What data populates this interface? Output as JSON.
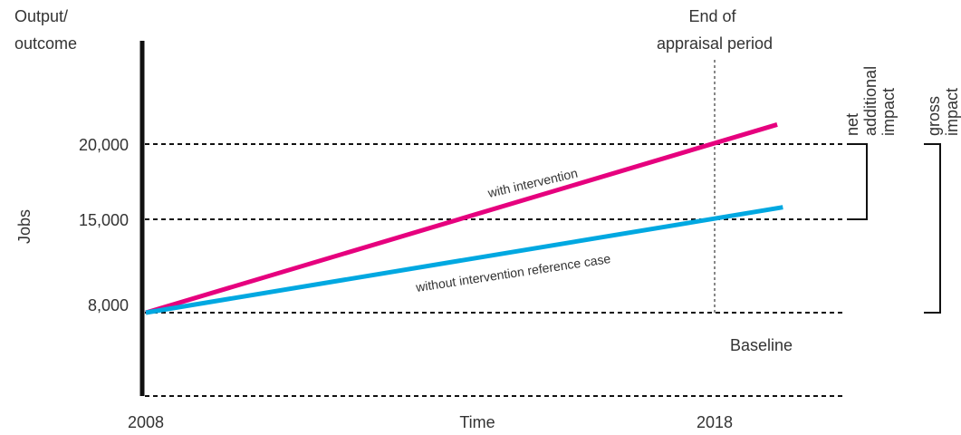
{
  "chart_data": {
    "type": "line",
    "title": "",
    "ylabel": "Jobs",
    "xlabel": "Time",
    "y_axis_title": "Output/ outcome",
    "x_tick_labels": [
      {
        "value": 2008,
        "label": "2008"
      },
      {
        "value": 2018,
        "label": "2018"
      }
    ],
    "y_tick_labels": [
      {
        "value": 20000,
        "label": "20,000"
      },
      {
        "value": 15000,
        "label": "15,000"
      },
      {
        "value": 8000,
        "label": "8,000"
      }
    ],
    "series": [
      {
        "name": "with intervention",
        "color": "#e6007e",
        "points": [
          [
            2008,
            8000
          ],
          [
            2018,
            20000
          ],
          [
            2019.1,
            21300
          ]
        ]
      },
      {
        "name": "without intervention reference case",
        "color": "#00a8e1",
        "points": [
          [
            2008,
            8000
          ],
          [
            2018,
            15000
          ],
          [
            2019.2,
            15800
          ]
        ]
      }
    ],
    "annotations": {
      "end_period": "End of appraisal period",
      "baseline": "Baseline",
      "net_impact": "net additional impact",
      "gross_impact": "gross impact"
    }
  }
}
